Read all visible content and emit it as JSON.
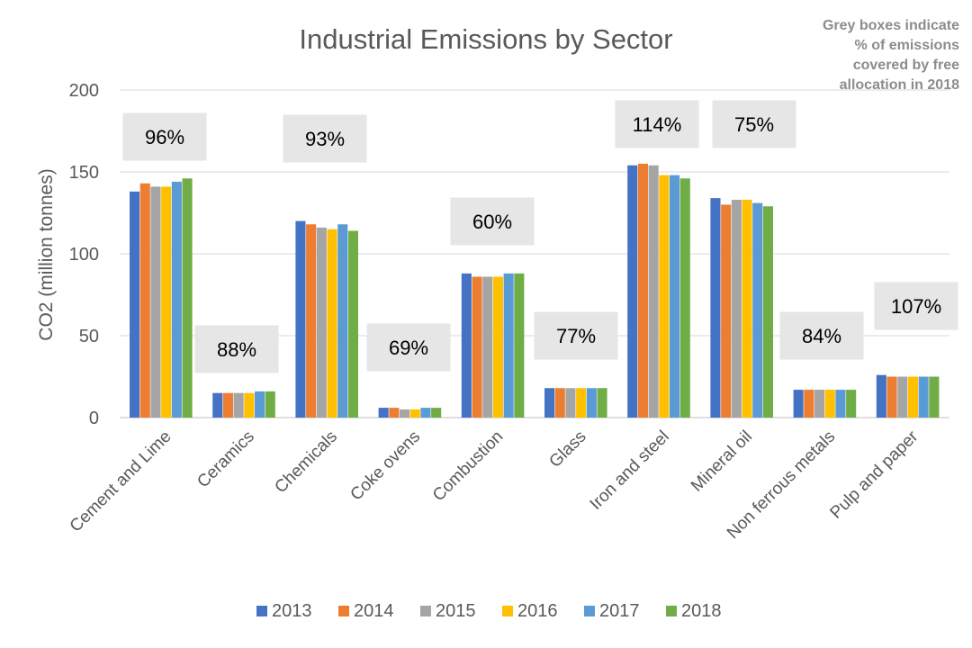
{
  "chart_data": {
    "type": "bar",
    "title": "Industrial Emissions by Sector",
    "note_lines": [
      "Grey boxes indicate",
      "% of emissions",
      "covered by free",
      "allocation in 2018"
    ],
    "xlabel": "",
    "ylabel": "CO2 (million tonnes)",
    "ylim": [
      0,
      200
    ],
    "yticks": [
      0,
      50,
      100,
      150,
      200
    ],
    "grid": true,
    "legend_position": "bottom",
    "categories": [
      "Cement and Lime",
      "Ceramics",
      "Chemicals",
      "Coke ovens",
      "Combustion",
      "Glass",
      "Iron and steel",
      "Mineral oil",
      "Non ferrous metals",
      "Pulp and paper"
    ],
    "series": [
      {
        "name": "2013",
        "color": "#4472C4",
        "values": [
          138,
          15,
          120,
          6,
          88,
          18,
          154,
          134,
          17,
          26
        ]
      },
      {
        "name": "2014",
        "color": "#ED7D31",
        "values": [
          143,
          15,
          118,
          6,
          86,
          18,
          155,
          130,
          17,
          25
        ]
      },
      {
        "name": "2015",
        "color": "#A5A5A5",
        "values": [
          141,
          15,
          116,
          5,
          86,
          18,
          154,
          133,
          17,
          25
        ]
      },
      {
        "name": "2016",
        "color": "#FFC000",
        "values": [
          141,
          15,
          115,
          5,
          86,
          18,
          148,
          133,
          17,
          25
        ]
      },
      {
        "name": "2017",
        "color": "#5B9BD5",
        "values": [
          144,
          16,
          118,
          6,
          88,
          18,
          148,
          131,
          17,
          25
        ]
      },
      {
        "name": "2018",
        "color": "#70AD47",
        "values": [
          146,
          16,
          114,
          6,
          88,
          18,
          146,
          129,
          17,
          25
        ]
      }
    ],
    "annotations": [
      {
        "category": "Cement and Lime",
        "label": "96%",
        "value": 96
      },
      {
        "category": "Ceramics",
        "label": "88%",
        "value": 88
      },
      {
        "category": "Chemicals",
        "label": "93%",
        "value": 93
      },
      {
        "category": "Coke ovens",
        "label": "69%",
        "value": 69
      },
      {
        "category": "Combustion",
        "label": "60%",
        "value": 60
      },
      {
        "category": "Glass",
        "label": "77%",
        "value": 77
      },
      {
        "category": "Iron and steel",
        "label": "114%",
        "value": 114
      },
      {
        "category": "Mineral oil",
        "label": "75%",
        "value": 75
      },
      {
        "category": "Non ferrous metals",
        "label": "84%",
        "value": 84
      },
      {
        "category": "Pulp and paper",
        "label": "107%",
        "value": 107
      }
    ],
    "annotation_box_color": "#E7E6E6"
  }
}
